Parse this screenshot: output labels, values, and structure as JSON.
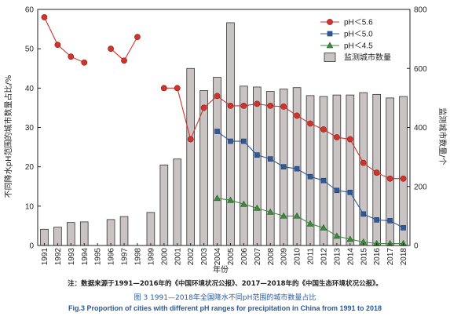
{
  "chart_data": {
    "type": "bar+line",
    "title": "",
    "xlabel": "年份",
    "ylabel_left": "不同降水pH范围的城市数量占比/%",
    "ylabel_right": "监测城市数量/个",
    "ylim_left": [
      0,
      60
    ],
    "yticks_left": [
      "0",
      "10",
      "20",
      "30",
      "40",
      "50",
      "60"
    ],
    "ylim_right": [
      0,
      800
    ],
    "yticks_right": [
      "0",
      "200",
      "400",
      "600",
      "800"
    ],
    "legend_position": "top-right",
    "categories": [
      "1991",
      "1992",
      "1993",
      "1994",
      "1995",
      "1996",
      "1997",
      "1998",
      "1999",
      "2000",
      "2001",
      "2002",
      "2003",
      "2004",
      "2005",
      "2006",
      "2007",
      "2008",
      "2009",
      "2010",
      "2011",
      "2012",
      "2013",
      "2014",
      "2015",
      "2016",
      "2017",
      "2018"
    ],
    "bar_series": {
      "name": "监测城市数量",
      "axis": "right",
      "color": "#c9c4c3",
      "values": [
        55,
        62,
        78,
        80,
        null,
        88,
        98,
        null,
        112,
        273,
        293,
        600,
        525,
        570,
        755,
        540,
        537,
        522,
        530,
        535,
        508,
        505,
        510,
        510,
        518,
        512,
        500,
        505
      ]
    },
    "line_series": [
      {
        "name": "pH＜5.6",
        "axis": "left",
        "color": "#d0342c",
        "marker": "circle",
        "values": [
          58,
          51,
          48,
          46.5,
          null,
          50,
          47,
          53,
          null,
          40,
          40,
          27,
          35,
          38,
          35.5,
          35.5,
          36,
          35.5,
          35.3,
          33,
          31,
          29.5,
          27.5,
          27,
          21,
          18.5,
          17,
          17
        ]
      },
      {
        "name": "pH＜5.0",
        "axis": "left",
        "color": "#2e5a9c",
        "marker": "square",
        "values": [
          null,
          null,
          null,
          null,
          null,
          null,
          null,
          null,
          null,
          null,
          null,
          null,
          null,
          29,
          26.5,
          26.5,
          23,
          22,
          20,
          19.5,
          17.5,
          16.5,
          14,
          13.5,
          8,
          6.5,
          6.3,
          4.5
        ]
      },
      {
        "name": "pH＜4.5",
        "axis": "left",
        "color": "#3c8c3c",
        "marker": "triangle",
        "values": [
          null,
          null,
          null,
          null,
          null,
          null,
          null,
          null,
          null,
          null,
          null,
          null,
          null,
          12,
          11.5,
          10.5,
          9.5,
          8.5,
          7.5,
          7.5,
          5.5,
          4.5,
          2.4,
          1.6,
          0.9,
          0.5,
          0.5,
          0.5
        ]
      }
    ]
  },
  "captions": {
    "note": "注：数据来源于1991—2016年的《中国环境状况公报》、2017—2018年的《中国生态环境状况公报》。",
    "figure_cn": "图 3  1991—2018年全国降水不同pH范围的城市数量占比",
    "figure_en": "Fig.3  Proportion of cities with different pH ranges for precipitation in China from 1991 to 2018"
  }
}
